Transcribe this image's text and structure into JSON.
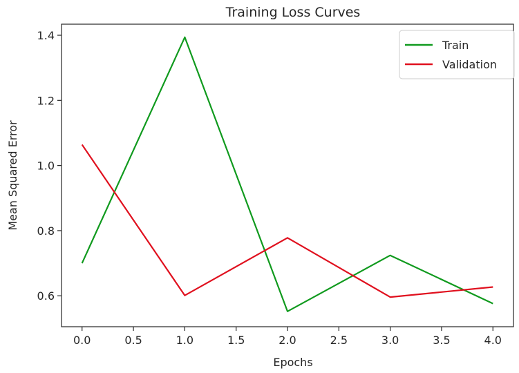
{
  "chart_data": {
    "type": "line",
    "title": "Training Loss Curves",
    "xlabel": "Epochs",
    "ylabel": "Mean Squared Error",
    "x": [
      0,
      1,
      2,
      3,
      4
    ],
    "series": [
      {
        "name": "Train",
        "color": "#109a1e",
        "values": [
          0.7,
          1.394,
          0.552,
          0.724,
          0.576
        ]
      },
      {
        "name": "Validation",
        "color": "#e0101e",
        "values": [
          1.064,
          0.601,
          0.778,
          0.596,
          0.627
        ]
      }
    ],
    "xlim": [
      -0.2,
      4.2
    ],
    "ylim": [
      0.505,
      1.434
    ],
    "xticks": [
      0.0,
      0.5,
      1.0,
      1.5,
      2.0,
      2.5,
      3.0,
      3.5,
      4.0
    ],
    "xtick_labels": [
      "0.0",
      "0.5",
      "1.0",
      "1.5",
      "2.0",
      "2.5",
      "3.0",
      "3.5",
      "4.0"
    ],
    "yticks": [
      0.6,
      0.8,
      1.0,
      1.2,
      1.4
    ],
    "ytick_labels": [
      "0.6",
      "0.8",
      "1.0",
      "1.2",
      "1.4"
    ],
    "grid": false,
    "legend": "top-right"
  }
}
